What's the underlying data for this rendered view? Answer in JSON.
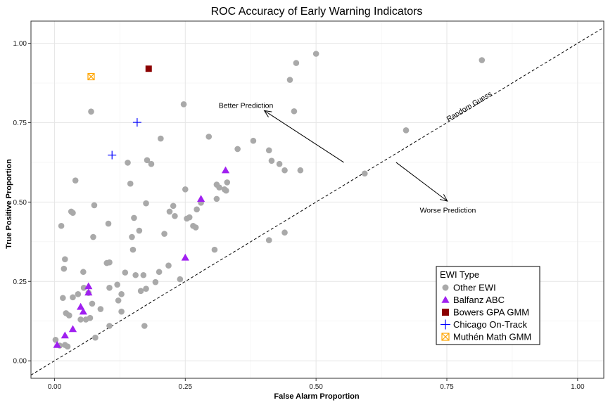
{
  "chart_data": {
    "type": "scatter",
    "title": "ROC Accuracy of Early Warning Indicators",
    "xlabel": "False Alarm Proportion",
    "ylabel": "True Positive Proportion",
    "xlim": [
      -0.045,
      1.05
    ],
    "ylim": [
      -0.055,
      1.07
    ],
    "x_ticks": [
      0.0,
      0.25,
      0.5,
      0.75,
      1.0
    ],
    "x_tick_labels": [
      "0.00",
      "0.25",
      "0.50",
      "0.75",
      "1.00"
    ],
    "y_ticks": [
      0.0,
      0.25,
      0.5,
      0.75,
      1.0
    ],
    "y_tick_labels": [
      "0.00",
      "0.25",
      "0.50",
      "0.75",
      "1.00"
    ],
    "grid": true,
    "annotations": {
      "random_guess": "Random Guess",
      "better": "Better Prediction",
      "worse": "Worse Prediction"
    },
    "legend": {
      "title": "EWI Type",
      "placement": "bottom-right"
    },
    "series": [
      {
        "name": "Other EWI",
        "marker": "circle",
        "color": "#a9a9a9",
        "points": [
          [
            0.002,
            0.066
          ],
          [
            0.01,
            0.048
          ],
          [
            0.02,
            0.05
          ],
          [
            0.025,
            0.045
          ],
          [
            0.013,
            0.425
          ],
          [
            0.02,
            0.32
          ],
          [
            0.018,
            0.29
          ],
          [
            0.016,
            0.198
          ],
          [
            0.022,
            0.15
          ],
          [
            0.028,
            0.143
          ],
          [
            0.032,
            0.47
          ],
          [
            0.035,
            0.466
          ],
          [
            0.04,
            0.568
          ],
          [
            0.035,
            0.2
          ],
          [
            0.045,
            0.21
          ],
          [
            0.05,
            0.13
          ],
          [
            0.055,
            0.28
          ],
          [
            0.056,
            0.23
          ],
          [
            0.06,
            0.13
          ],
          [
            0.065,
            0.214
          ],
          [
            0.068,
            0.135
          ],
          [
            0.07,
            0.785
          ],
          [
            0.072,
            0.18
          ],
          [
            0.074,
            0.39
          ],
          [
            0.076,
            0.49
          ],
          [
            0.078,
            0.073
          ],
          [
            0.088,
            0.163
          ],
          [
            0.1,
            0.308
          ],
          [
            0.103,
            0.432
          ],
          [
            0.105,
            0.31
          ],
          [
            0.105,
            0.11
          ],
          [
            0.105,
            0.23
          ],
          [
            0.12,
            0.24
          ],
          [
            0.122,
            0.19
          ],
          [
            0.128,
            0.21
          ],
          [
            0.128,
            0.155
          ],
          [
            0.135,
            0.278
          ],
          [
            0.14,
            0.624
          ],
          [
            0.145,
            0.558
          ],
          [
            0.148,
            0.39
          ],
          [
            0.15,
            0.35
          ],
          [
            0.152,
            0.45
          ],
          [
            0.155,
            0.27
          ],
          [
            0.162,
            0.41
          ],
          [
            0.165,
            0.22
          ],
          [
            0.17,
            0.27
          ],
          [
            0.172,
            0.11
          ],
          [
            0.175,
            0.227
          ],
          [
            0.175,
            0.496
          ],
          [
            0.177,
            0.632
          ],
          [
            0.185,
            0.62
          ],
          [
            0.193,
            0.248
          ],
          [
            0.2,
            0.28
          ],
          [
            0.203,
            0.7
          ],
          [
            0.21,
            0.4
          ],
          [
            0.218,
            0.3
          ],
          [
            0.22,
            0.47
          ],
          [
            0.227,
            0.488
          ],
          [
            0.23,
            0.456
          ],
          [
            0.24,
            0.257
          ],
          [
            0.247,
            0.808
          ],
          [
            0.25,
            0.54
          ],
          [
            0.253,
            0.448
          ],
          [
            0.258,
            0.452
          ],
          [
            0.265,
            0.425
          ],
          [
            0.27,
            0.42
          ],
          [
            0.272,
            0.477
          ],
          [
            0.28,
            0.498
          ],
          [
            0.295,
            0.706
          ],
          [
            0.306,
            0.35
          ],
          [
            0.31,
            0.51
          ],
          [
            0.31,
            0.555
          ],
          [
            0.315,
            0.546
          ],
          [
            0.325,
            0.54
          ],
          [
            0.328,
            0.536
          ],
          [
            0.33,
            0.562
          ],
          [
            0.35,
            0.667
          ],
          [
            0.38,
            0.693
          ],
          [
            0.41,
            0.38
          ],
          [
            0.41,
            0.663
          ],
          [
            0.415,
            0.63
          ],
          [
            0.43,
            0.62
          ],
          [
            0.44,
            0.6
          ],
          [
            0.44,
            0.404
          ],
          [
            0.45,
            0.885
          ],
          [
            0.458,
            0.786
          ],
          [
            0.462,
            0.938
          ],
          [
            0.47,
            0.6
          ],
          [
            0.5,
            0.967
          ],
          [
            0.593,
            0.59
          ],
          [
            0.672,
            0.726
          ],
          [
            0.817,
            0.947
          ]
        ]
      },
      {
        "name": "Balfanz ABC",
        "marker": "triangle",
        "color": "#a020f0",
        "points": [
          [
            0.005,
            0.05
          ],
          [
            0.02,
            0.08
          ],
          [
            0.035,
            0.1
          ],
          [
            0.05,
            0.17
          ],
          [
            0.055,
            0.155
          ],
          [
            0.065,
            0.235
          ],
          [
            0.065,
            0.215
          ],
          [
            0.25,
            0.325
          ],
          [
            0.28,
            0.51
          ],
          [
            0.327,
            0.6
          ]
        ]
      },
      {
        "name": "Bowers GPA GMM",
        "marker": "square",
        "color": "#8b0000",
        "points": [
          [
            0.18,
            0.92
          ]
        ]
      },
      {
        "name": "Chicago On-Track",
        "marker": "plus",
        "color": "#0000ff",
        "points": [
          [
            0.11,
            0.648
          ],
          [
            0.158,
            0.751
          ]
        ]
      },
      {
        "name": "Muthén Math GMM",
        "marker": "crossbox",
        "color": "#ffa500",
        "points": [
          [
            0.07,
            0.895
          ]
        ]
      }
    ]
  }
}
